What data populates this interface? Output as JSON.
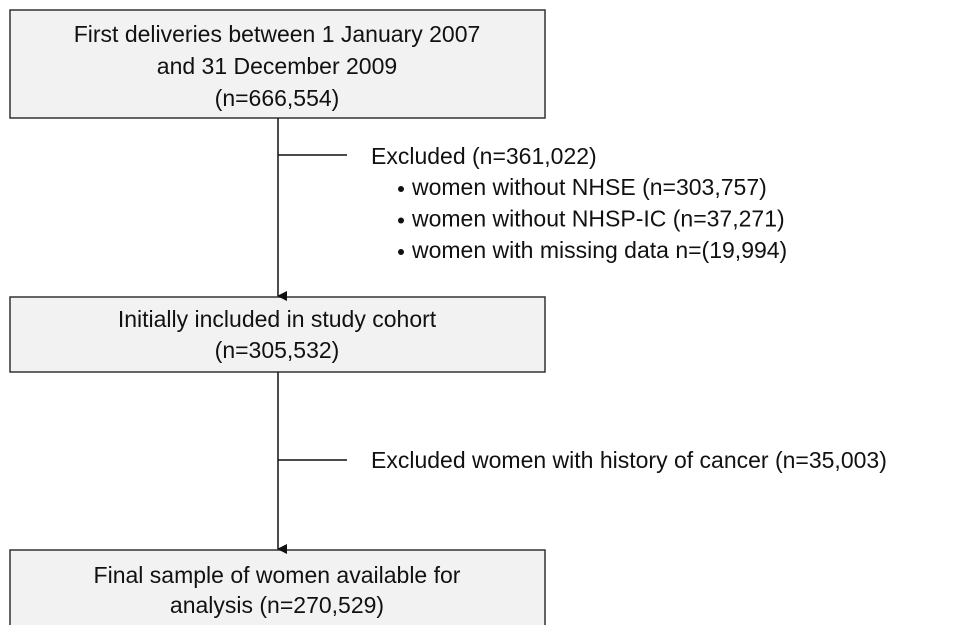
{
  "nodes": [
    {
      "lines": [
        "First deliveries between 1 January 2007",
        "and 31 December 2009",
        "(n=666,554)"
      ]
    },
    {
      "lines": [
        "Initially included in study cohort",
        "(n=305,532)"
      ]
    },
    {
      "lines": [
        "Final sample of women available for",
        "analysis (n=270,529)"
      ]
    }
  ],
  "exclusions": [
    {
      "label": "Excluded (n=361,022)",
      "items": [
        "women without NHSE (n=303,757)",
        "women without NHSP-IC (n=37,271)",
        "women with missing data n=(19,994)"
      ]
    },
    {
      "label": "Excluded women with history of cancer (n=35,003)",
      "items": []
    }
  ]
}
